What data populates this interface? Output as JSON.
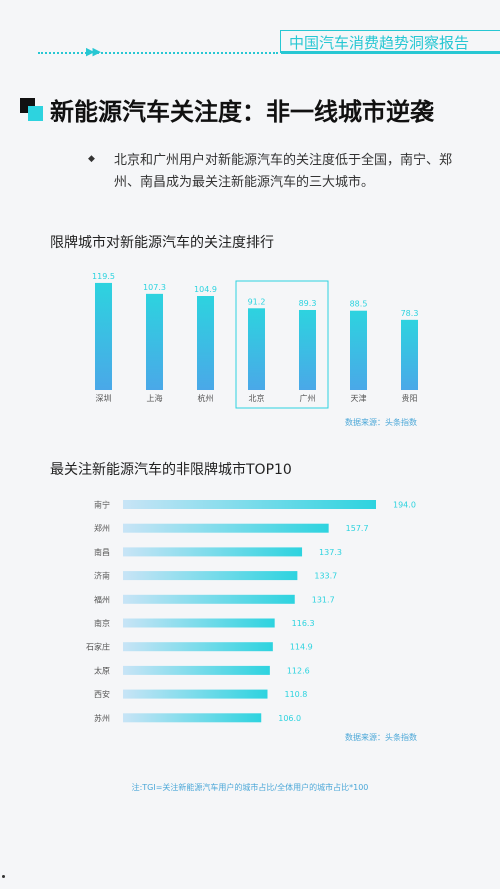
{
  "header": {
    "arrows": "▶▶",
    "report_title": "中国汽车消费趋势洞察报告"
  },
  "page": {
    "title": "新能源汽车关注度：非一线城市逆袭",
    "bullet": "◆",
    "intro": "北京和广州用户对新能源汽车的关注度低于全国，南宁、郑州、南昌成为最关注新能源汽车的三大城市。"
  },
  "chart_data": [
    {
      "type": "bar",
      "title": "限牌城市对新能源汽车的关注度排行",
      "categories": [
        "深圳",
        "上海",
        "杭州",
        "北京",
        "广州",
        "天津",
        "贵阳"
      ],
      "values": [
        119.5,
        107.3,
        104.9,
        91.2,
        89.3,
        88.5,
        78.3
      ],
      "highlighted": [
        "北京",
        "广州"
      ],
      "source": "数据来源：头条指数",
      "ylim": [
        0,
        125
      ],
      "colors": {
        "top": "#2dd3df",
        "bottom": "#4aa8e8"
      }
    },
    {
      "type": "bar",
      "orientation": "horizontal",
      "title": "最关注新能源汽车的非限牌城市TOP10",
      "categories": [
        "南宁",
        "郑州",
        "南昌",
        "济南",
        "福州",
        "南京",
        "石家庄",
        "太原",
        "西安",
        "苏州"
      ],
      "values": [
        194.0,
        157.7,
        137.3,
        133.7,
        131.7,
        116.3,
        114.9,
        112.6,
        110.8,
        106.0
      ],
      "source": "数据来源：头条指数",
      "xlim": [
        0,
        194
      ],
      "colors": {
        "left": "#c8e4f6",
        "right": "#2dd3df"
      }
    }
  ],
  "footnote": "注:TGI=关注新能源汽车用户的城市占比/全体用户的城市占比*100"
}
